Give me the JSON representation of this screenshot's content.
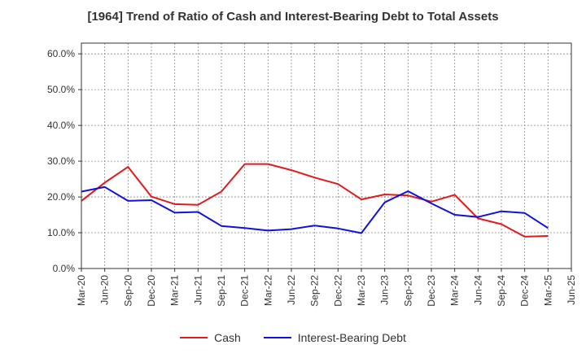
{
  "chart_data": {
    "type": "line",
    "title": "[1964]  Trend of Ratio of Cash and Interest-Bearing Debt to Total Assets",
    "xlabel": "",
    "ylabel": "",
    "x": [
      "Mar-20",
      "Jun-20",
      "Sep-20",
      "Dec-20",
      "Mar-21",
      "Jun-21",
      "Sep-21",
      "Dec-21",
      "Mar-22",
      "Jun-22",
      "Sep-22",
      "Dec-22",
      "Mar-23",
      "Jun-23",
      "Sep-23",
      "Dec-23",
      "Mar-24",
      "Jun-24",
      "Sep-24",
      "Dec-24",
      "Mar-25",
      "Jun-25"
    ],
    "y_ticks": [
      "0.0%",
      "10.0%",
      "20.0%",
      "30.0%",
      "40.0%",
      "50.0%",
      "60.0%"
    ],
    "ylim": [
      0,
      63
    ],
    "grid": true,
    "legend_position": "bottom",
    "series": [
      {
        "name": "Cash",
        "color": "#e31a1c",
        "values": [
          18.9,
          24.0,
          28.4,
          20.1,
          18.0,
          17.8,
          21.5,
          29.2,
          29.2,
          27.5,
          25.4,
          23.6,
          19.3,
          20.7,
          20.4,
          18.7,
          20.6,
          14.0,
          12.4,
          8.9,
          9.1,
          null
        ]
      },
      {
        "name": "Interest-Bearing Debt",
        "color": "#1010e0",
        "values": [
          21.5,
          22.8,
          18.9,
          19.1,
          15.6,
          15.8,
          11.9,
          11.3,
          10.6,
          11.0,
          12.0,
          11.2,
          9.9,
          18.5,
          21.6,
          18.2,
          15.0,
          14.4,
          16.0,
          15.5,
          11.3,
          null
        ]
      }
    ]
  },
  "colors": {
    "grid": "#888888",
    "axis": "#333333"
  }
}
